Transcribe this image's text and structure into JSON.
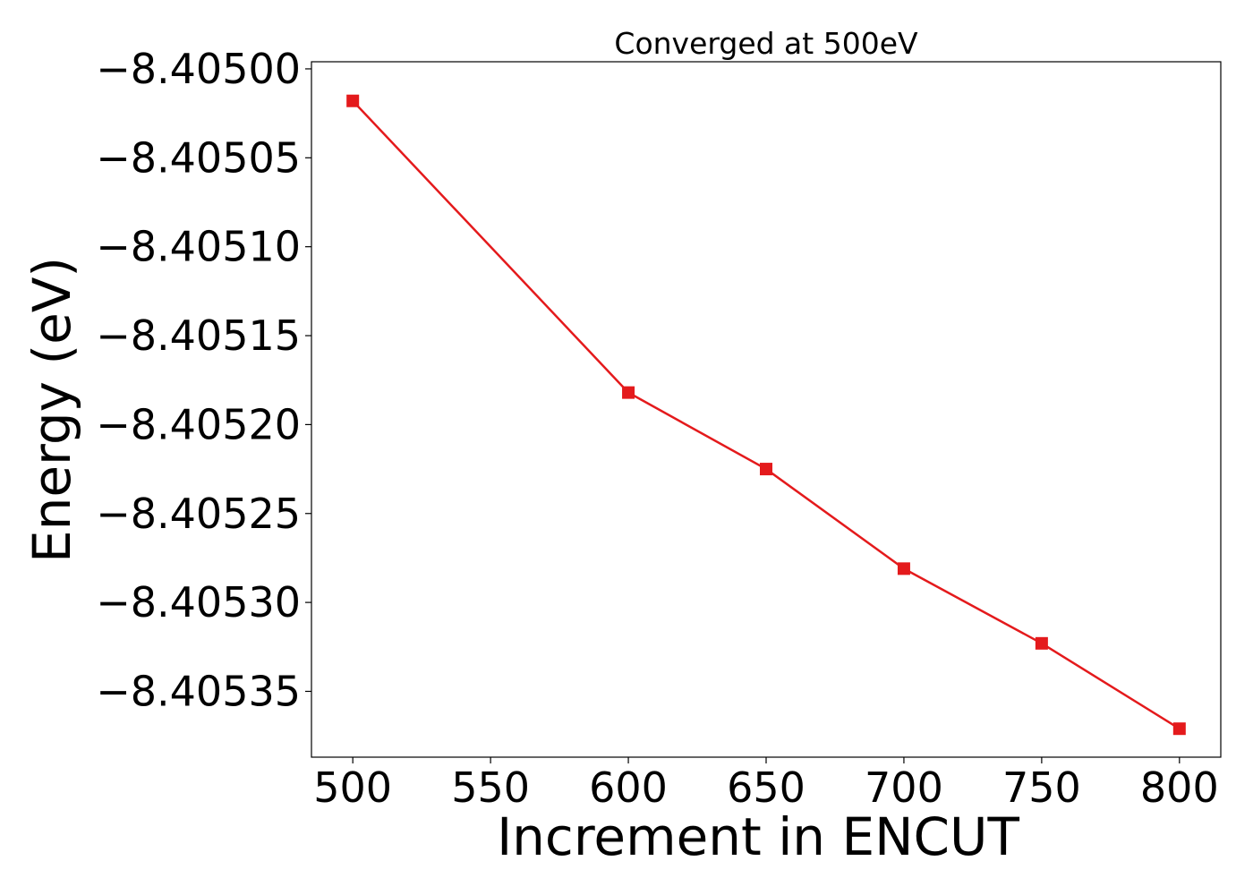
{
  "chart_data": {
    "type": "line",
    "title": "Converged at 500eV",
    "xlabel": "Increment in ENCUT",
    "ylabel": "Energy (eV)",
    "x": [
      500,
      600,
      650,
      700,
      750,
      800
    ],
    "series": [
      {
        "values": [
          -8.405018,
          -8.405182,
          -8.405225,
          -8.405281,
          -8.405323,
          -8.405371
        ],
        "color": "#e41a1c",
        "marker": "square"
      }
    ],
    "xlim": [
      485,
      815
    ],
    "ylim": [
      -8.405387,
      -8.404996
    ],
    "xticks": [
      500,
      550,
      600,
      650,
      700,
      750,
      800
    ],
    "xtick_labels": [
      "500",
      "550",
      "600",
      "650",
      "700",
      "750",
      "800"
    ],
    "yticks": [
      -8.405,
      -8.40505,
      -8.4051,
      -8.40515,
      -8.4052,
      -8.40525,
      -8.4053,
      -8.40535
    ],
    "ytick_labels": [
      "−8.40500",
      "−8.40505",
      "−8.40510",
      "−8.40515",
      "−8.40520",
      "−8.40525",
      "−8.40530",
      "−8.40535"
    ],
    "grid": false,
    "legend": "none"
  }
}
